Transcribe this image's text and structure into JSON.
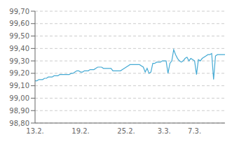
{
  "chart_data": {
    "type": "line",
    "categories": [
      "13.2.",
      null,
      null,
      null,
      null,
      null,
      null,
      null,
      null,
      null,
      null,
      null,
      null,
      null,
      null,
      null,
      null,
      null,
      null,
      null,
      null,
      null,
      null,
      null,
      "19.2.",
      null,
      null,
      null,
      null,
      null,
      null,
      null,
      null,
      null,
      null,
      null,
      null,
      null,
      null,
      null,
      null,
      null,
      null,
      null,
      null,
      null,
      null,
      null,
      "25.2.",
      null,
      null,
      null,
      null,
      null,
      null,
      null,
      null,
      null,
      null,
      null,
      null,
      null,
      null,
      null,
      null,
      null,
      null,
      null,
      "3.3.",
      null,
      null,
      null,
      null,
      null,
      null,
      null,
      null,
      null,
      null,
      null,
      null,
      null,
      null,
      null,
      "7.3.",
      null,
      null,
      null,
      null,
      null,
      null,
      null,
      null,
      null,
      null,
      null,
      null,
      null,
      null,
      null,
      null
    ],
    "values": [
      99.14,
      99.14,
      99.15,
      99.15,
      99.15,
      99.16,
      99.16,
      99.17,
      99.17,
      99.17,
      99.18,
      99.18,
      99.18,
      99.19,
      99.19,
      99.19,
      99.19,
      99.19,
      99.19,
      99.2,
      99.2,
      99.21,
      99.22,
      99.22,
      99.21,
      99.21,
      99.22,
      99.22,
      99.22,
      99.23,
      99.23,
      99.23,
      99.24,
      99.25,
      99.25,
      99.25,
      99.24,
      99.24,
      99.24,
      99.24,
      99.24,
      99.22,
      99.22,
      99.22,
      99.22,
      99.22,
      99.23,
      99.24,
      99.25,
      99.26,
      99.27,
      99.27,
      99.27,
      99.27,
      99.27,
      99.27,
      99.26,
      99.25,
      99.21,
      99.24,
      99.2,
      99.21,
      99.28,
      99.28,
      99.29,
      99.29,
      99.29,
      99.3,
      99.3,
      99.3,
      99.2,
      99.28,
      99.3,
      99.39,
      99.35,
      99.32,
      99.3,
      99.29,
      99.3,
      99.32,
      99.33,
      99.3,
      99.32,
      99.31,
      99.3,
      99.19,
      99.31,
      99.3,
      99.32,
      99.33,
      99.34,
      99.35,
      99.35,
      99.36,
      99.15,
      99.34,
      99.35,
      99.35,
      99.35,
      99.35,
      99.35
    ],
    "color": "#45aad4",
    "ylim": [
      98.8,
      99.7
    ],
    "yticks": [
      {
        "value": 98.8,
        "label": "98,80"
      },
      {
        "value": 98.9,
        "label": "98,90"
      },
      {
        "value": 99.0,
        "label": "99,00"
      },
      {
        "value": 99.1,
        "label": "99,10"
      },
      {
        "value": 99.2,
        "label": "99,20"
      },
      {
        "value": 99.3,
        "label": "99,30"
      },
      {
        "value": 99.4,
        "label": "99,40"
      },
      {
        "value": 99.5,
        "label": "99,50"
      },
      {
        "value": 99.6,
        "label": "99,60"
      },
      {
        "value": 99.7,
        "label": "99,70"
      }
    ],
    "grid": true
  }
}
